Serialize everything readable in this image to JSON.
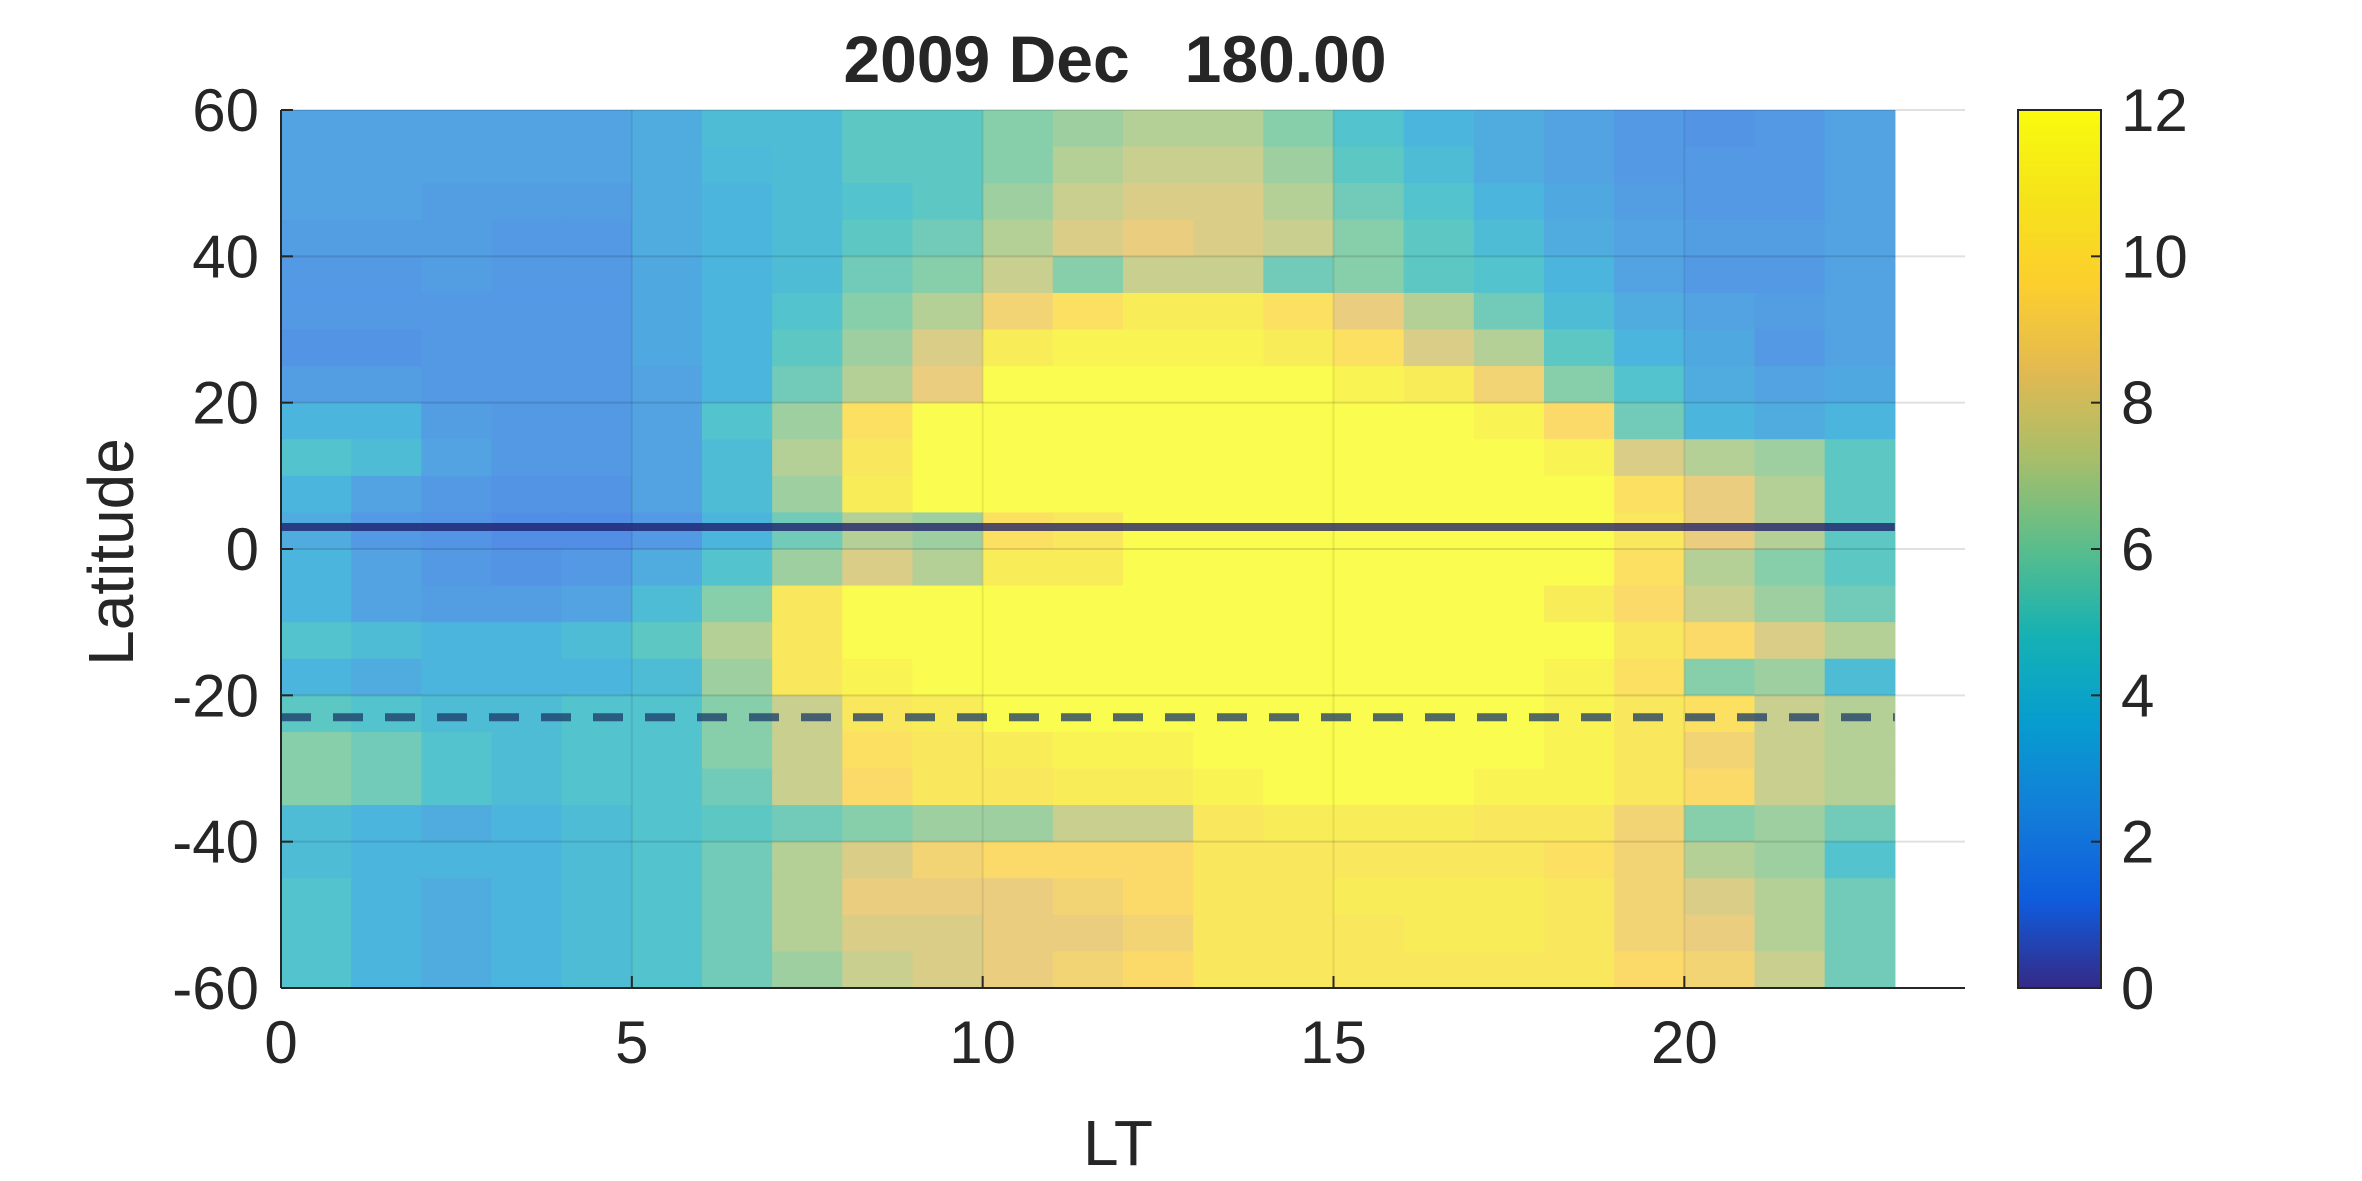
{
  "chart_data": {
    "type": "heatmap",
    "title": "2009 Dec   180.00",
    "xlabel": "LT",
    "ylabel": "Latitude",
    "xlim": [
      0,
      24
    ],
    "ylim": [
      -60,
      60
    ],
    "x_ticks": [
      0,
      5,
      10,
      15,
      20
    ],
    "y_ticks": [
      60,
      40,
      20,
      0,
      -20,
      -40,
      -60
    ],
    "grid": true,
    "x_centers": [
      0.5,
      1.5,
      2.5,
      3.5,
      4.5,
      5.5,
      6.5,
      7.5,
      8.5,
      9.5,
      10.5,
      11.5,
      12.5,
      13.5,
      14.5,
      15.5,
      16.5,
      17.5,
      18.5,
      19.5,
      20.5,
      21.5,
      22.5
    ],
    "y_centers": [
      57.5,
      52.5,
      47.5,
      42.5,
      37.5,
      32.5,
      27.5,
      22.5,
      17.5,
      12.5,
      7.5,
      2.5,
      -2.5,
      -7.5,
      -12.5,
      -17.5,
      -22.5,
      -27.5,
      -32.5,
      -37.5,
      -42.5,
      -47.5,
      -52.5,
      -57.5
    ],
    "values": [
      [
        2.5,
        2.5,
        2.5,
        2.5,
        2.5,
        3.0,
        4.0,
        4.0,
        5.0,
        5.0,
        6.0,
        6.5,
        7.0,
        7.0,
        6.0,
        4.5,
        3.5,
        3.0,
        2.5,
        2.0,
        1.8,
        2.0,
        2.5
      ],
      [
        2.5,
        2.5,
        2.5,
        2.5,
        2.5,
        3.0,
        3.8,
        4.0,
        5.0,
        5.0,
        6.0,
        7.0,
        7.5,
        7.5,
        6.5,
        5.0,
        4.0,
        3.0,
        2.5,
        2.0,
        2.0,
        2.0,
        2.5
      ],
      [
        2.5,
        2.5,
        2.3,
        2.3,
        2.3,
        3.0,
        3.5,
        4.0,
        4.5,
        5.0,
        6.5,
        7.5,
        8.0,
        8.0,
        7.0,
        5.5,
        4.5,
        3.5,
        2.8,
        2.2,
        2.0,
        2.0,
        2.5
      ],
      [
        2.2,
        2.2,
        2.2,
        2.0,
        2.0,
        3.0,
        3.5,
        4.0,
        5.0,
        5.5,
        7.0,
        8.0,
        8.5,
        8.0,
        7.5,
        6.0,
        5.0,
        4.0,
        3.0,
        2.5,
        2.2,
        2.2,
        2.5
      ],
      [
        2.0,
        2.0,
        2.2,
        2.0,
        2.0,
        2.8,
        3.5,
        4.0,
        5.5,
        6.0,
        7.5,
        6.0,
        7.5,
        7.5,
        5.5,
        6.0,
        5.0,
        4.5,
        3.5,
        2.5,
        2.0,
        2.0,
        2.5
      ],
      [
        2.0,
        2.0,
        2.0,
        2.0,
        2.0,
        2.8,
        3.5,
        4.5,
        6.0,
        7.0,
        9.0,
        10.0,
        11.0,
        11.0,
        10.0,
        8.5,
        7.0,
        5.5,
        4.0,
        3.0,
        2.5,
        2.2,
        2.5
      ],
      [
        1.8,
        1.8,
        2.0,
        2.0,
        2.0,
        2.8,
        3.5,
        5.0,
        6.5,
        8.0,
        11.0,
        11.5,
        11.5,
        11.5,
        11.0,
        10.0,
        8.0,
        7.0,
        5.0,
        3.5,
        2.8,
        2.0,
        2.5
      ],
      [
        2.2,
        2.2,
        2.0,
        2.0,
        2.0,
        2.5,
        3.5,
        5.5,
        7.0,
        8.5,
        12.0,
        12.0,
        12.0,
        12.0,
        12.0,
        11.5,
        11.0,
        9.0,
        6.0,
        4.5,
        3.0,
        2.5,
        2.8
      ],
      [
        3.5,
        3.5,
        2.2,
        2.0,
        2.0,
        2.5,
        4.5,
        6.5,
        10.0,
        12.0,
        12.0,
        12.0,
        12.0,
        12.0,
        12.0,
        12.0,
        12.0,
        11.5,
        9.5,
        5.5,
        3.5,
        3.0,
        3.5
      ],
      [
        4.5,
        4.0,
        2.5,
        2.0,
        2.0,
        2.5,
        4.0,
        7.0,
        10.5,
        12.0,
        12.0,
        12.0,
        12.0,
        12.0,
        12.0,
        12.0,
        12.0,
        12.0,
        11.5,
        8.0,
        7.0,
        6.5,
        5.0
      ],
      [
        3.5,
        2.5,
        2.0,
        1.8,
        1.8,
        2.5,
        4.0,
        6.5,
        11.0,
        12.0,
        12.0,
        12.0,
        12.0,
        12.0,
        12.0,
        12.0,
        12.0,
        12.0,
        12.0,
        10.0,
        8.5,
        7.0,
        5.0
      ],
      [
        3.0,
        2.0,
        1.8,
        1.5,
        1.5,
        2.0,
        3.5,
        5.5,
        7.0,
        6.5,
        10.0,
        10.5,
        12.0,
        12.0,
        12.0,
        12.0,
        12.0,
        12.0,
        12.0,
        10.5,
        8.5,
        7.0,
        5.0
      ],
      [
        3.5,
        2.5,
        2.0,
        1.8,
        2.0,
        3.0,
        4.5,
        6.5,
        8.0,
        7.0,
        11.0,
        11.0,
        12.0,
        12.0,
        12.0,
        12.0,
        12.0,
        12.0,
        12.0,
        10.0,
        7.0,
        6.0,
        5.0
      ],
      [
        3.5,
        2.5,
        2.2,
        2.2,
        2.5,
        4.0,
        6.0,
        10.5,
        12.0,
        12.0,
        12.0,
        12.0,
        12.0,
        12.0,
        12.0,
        12.0,
        12.0,
        12.0,
        11.0,
        9.5,
        7.5,
        6.5,
        5.5
      ],
      [
        4.5,
        4.0,
        3.5,
        3.5,
        4.0,
        5.0,
        7.0,
        10.5,
        12.0,
        12.0,
        12.0,
        12.0,
        12.0,
        12.0,
        12.0,
        12.0,
        12.0,
        12.0,
        12.0,
        10.5,
        9.5,
        8.0,
        7.0
      ],
      [
        3.5,
        3.0,
        3.5,
        3.5,
        3.5,
        4.0,
        6.5,
        10.5,
        11.5,
        12.0,
        12.0,
        12.0,
        12.0,
        12.0,
        12.0,
        12.0,
        12.0,
        12.0,
        11.5,
        10.0,
        6.0,
        6.5,
        4.0
      ],
      [
        5.0,
        4.5,
        4.0,
        4.0,
        4.5,
        4.5,
        6.0,
        7.5,
        10.5,
        11.0,
        12.0,
        12.0,
        12.0,
        12.0,
        12.0,
        12.0,
        12.0,
        12.0,
        11.5,
        10.5,
        10.0,
        7.5,
        7.0
      ],
      [
        6.0,
        5.5,
        4.5,
        4.0,
        4.5,
        4.5,
        6.0,
        7.5,
        10.0,
        10.5,
        11.0,
        11.5,
        11.5,
        12.0,
        12.0,
        12.0,
        12.0,
        12.0,
        11.5,
        10.5,
        9.0,
        7.5,
        7.0
      ],
      [
        6.0,
        5.5,
        4.5,
        4.0,
        4.5,
        4.5,
        5.5,
        7.5,
        9.5,
        10.5,
        10.5,
        11.0,
        11.0,
        11.5,
        12.0,
        12.0,
        12.0,
        11.5,
        11.5,
        10.5,
        9.5,
        7.5,
        7.0
      ],
      [
        4.0,
        3.5,
        3.0,
        3.5,
        4.0,
        4.5,
        5.0,
        5.5,
        6.0,
        6.5,
        6.5,
        7.5,
        7.5,
        10.5,
        11.0,
        11.0,
        11.0,
        10.5,
        10.5,
        9.0,
        6.0,
        6.5,
        5.5
      ],
      [
        4.0,
        3.5,
        3.5,
        3.5,
        4.0,
        4.5,
        5.5,
        7.0,
        8.0,
        9.0,
        9.5,
        9.5,
        9.5,
        10.5,
        10.5,
        10.5,
        10.5,
        10.5,
        10.0,
        9.0,
        7.0,
        6.5,
        4.5
      ],
      [
        4.5,
        3.5,
        3.0,
        3.5,
        4.0,
        4.5,
        5.5,
        7.0,
        8.5,
        8.5,
        8.5,
        9.0,
        9.5,
        10.5,
        10.5,
        11.0,
        11.0,
        11.0,
        10.5,
        9.0,
        8.0,
        7.0,
        5.5
      ],
      [
        4.5,
        3.5,
        3.0,
        3.5,
        4.0,
        4.5,
        5.5,
        7.0,
        8.0,
        8.0,
        8.5,
        8.5,
        9.0,
        10.5,
        10.5,
        10.5,
        11.0,
        11.0,
        10.5,
        9.0,
        8.5,
        7.0,
        5.5
      ],
      [
        4.5,
        3.5,
        3.0,
        3.5,
        4.0,
        4.5,
        5.5,
        6.5,
        7.5,
        8.0,
        8.5,
        9.0,
        9.5,
        10.5,
        10.5,
        10.5,
        10.5,
        10.5,
        10.5,
        9.5,
        9.0,
        7.5,
        5.5
      ]
    ],
    "colorbar": {
      "range": [
        0,
        12
      ],
      "ticks": [
        12,
        10,
        8,
        6,
        4,
        2,
        0
      ],
      "colormap": "parula"
    },
    "lines": [
      {
        "style": "solid",
        "y": 3,
        "color": "#1a1a66"
      },
      {
        "style": "dashed",
        "y": -23,
        "color": "#1a3a66"
      }
    ]
  }
}
